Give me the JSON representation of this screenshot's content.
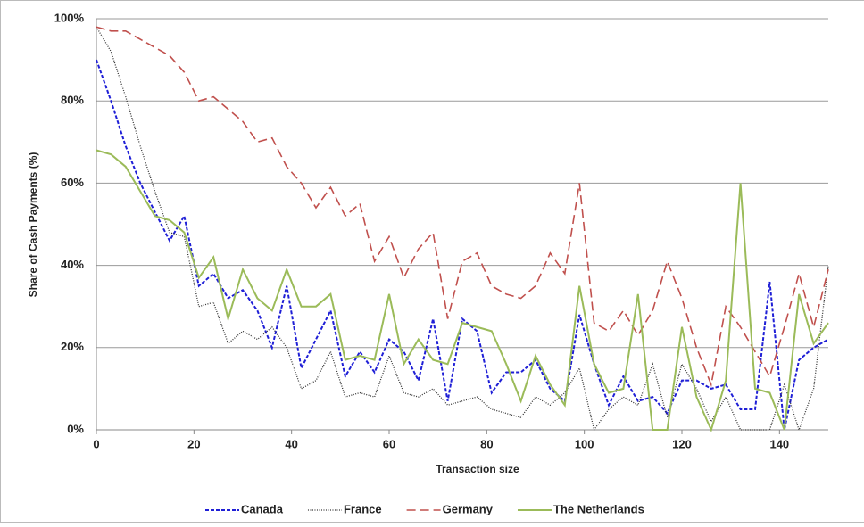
{
  "chart_data": {
    "type": "line",
    "x_label": "Transaction size",
    "y_label": "Share of Cash Payments (%)",
    "x": [
      0,
      3,
      6,
      9,
      12,
      15,
      18,
      21,
      24,
      27,
      30,
      33,
      36,
      39,
      42,
      45,
      48,
      51,
      54,
      57,
      60,
      63,
      66,
      69,
      72,
      75,
      78,
      81,
      84,
      87,
      90,
      93,
      96,
      99,
      102,
      105,
      108,
      111,
      114,
      117,
      120,
      123,
      126,
      129,
      132,
      135,
      138,
      141,
      144,
      147,
      150
    ],
    "series": [
      {
        "name": "Canada",
        "color": "#1f1fd6",
        "dash": "4,2",
        "width": 2,
        "values": [
          90,
          80,
          69,
          60,
          53,
          46,
          52,
          35,
          38,
          32,
          34,
          29,
          20,
          35,
          15,
          22,
          29,
          13,
          19,
          14,
          22,
          19,
          12,
          27,
          7,
          27,
          24,
          9,
          14,
          14,
          17,
          10,
          7,
          28,
          16,
          6,
          13,
          7,
          8,
          4,
          12,
          12,
          10,
          11,
          5,
          5,
          36,
          0,
          17,
          20,
          22
        ]
      },
      {
        "name": "France",
        "color": "#333333",
        "dash": "1,1.5",
        "width": 1.3,
        "values": [
          98,
          92,
          81,
          69,
          58,
          48,
          47,
          30,
          31,
          21,
          24,
          22,
          25,
          20,
          10,
          12,
          19,
          8,
          9,
          8,
          18,
          9,
          8,
          10,
          6,
          7,
          8,
          5,
          4,
          3,
          8,
          6,
          9,
          15,
          0,
          5,
          8,
          6,
          16,
          3,
          16,
          10,
          2,
          8,
          0,
          0,
          0,
          11,
          0,
          10,
          40
        ]
      },
      {
        "name": "Germany",
        "color": "#c0504d",
        "dash": "10,5",
        "width": 1.6,
        "values": [
          98,
          97,
          97,
          95,
          93,
          91,
          87,
          80,
          81,
          78,
          75,
          70,
          71,
          64,
          60,
          54,
          59,
          52,
          55,
          41,
          47,
          37,
          44,
          48,
          27,
          41,
          43,
          35,
          33,
          32,
          35,
          43,
          38,
          60,
          26,
          24,
          29,
          23,
          29,
          41,
          32,
          20,
          11,
          30,
          25,
          19,
          13,
          25,
          38,
          25,
          39
        ]
      },
      {
        "name": "The Netherlands",
        "color": "#9bbb59",
        "dash": "none",
        "width": 2,
        "values": [
          68,
          67,
          64,
          58,
          52,
          51,
          48,
          37,
          42,
          27,
          39,
          32,
          29,
          39,
          30,
          30,
          33,
          17,
          18,
          17,
          33,
          16,
          22,
          17,
          16,
          26,
          25,
          24,
          16,
          7,
          18,
          11,
          6,
          35,
          16,
          9,
          10,
          33,
          0,
          0,
          25,
          8,
          0,
          12,
          60,
          10,
          9,
          0,
          33,
          21,
          26
        ]
      }
    ],
    "xlim": [
      0,
      150
    ],
    "ylim": [
      0,
      100
    ],
    "xticks": [
      0,
      20,
      40,
      60,
      80,
      100,
      120,
      140
    ],
    "yticks": [
      {
        "value": 0,
        "label": "0%"
      },
      {
        "value": 20,
        "label": "20%"
      },
      {
        "value": 40,
        "label": "40%"
      },
      {
        "value": 60,
        "label": "60%"
      },
      {
        "value": 80,
        "label": "80%"
      },
      {
        "value": 100,
        "label": "100%"
      }
    ],
    "grid": true,
    "legend": "bottom"
  }
}
